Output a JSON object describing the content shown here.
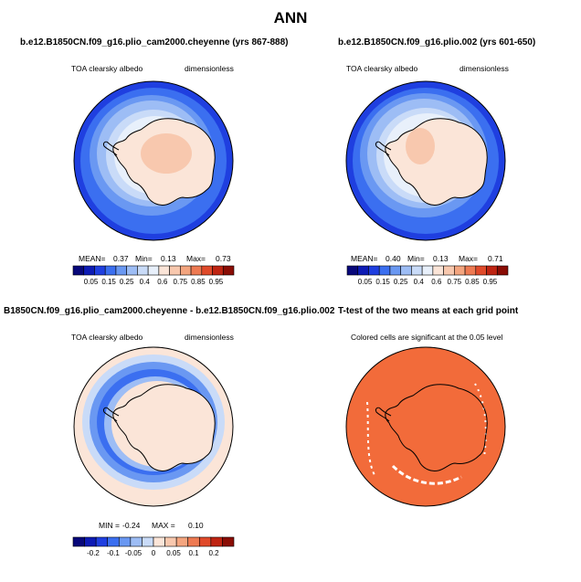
{
  "figure": {
    "title": "ANN"
  },
  "panels": [
    {
      "title": "b.e12.B1850CN.f09_g16.plio_cam2000.cheyenne (yrs 867-888)",
      "variable": "TOA clearsky albedo",
      "units": "dimensionless",
      "stats": {
        "mean_label": "MEAN=",
        "mean": "0.37",
        "min_label": "Min=",
        "min": "0.13",
        "max_label": "Max=",
        "max": "0.73"
      },
      "colorbar_labels": [
        "0.05",
        "0.15",
        "0.25",
        "0.4",
        "0.6",
        "0.75",
        "0.85",
        "0.95"
      ]
    },
    {
      "title": "b.e12.B1850CN.f09_g16.plio.002 (yrs 601-650)",
      "variable": "TOA clearsky albedo",
      "units": "dimensionless",
      "stats": {
        "mean_label": "MEAN=",
        "mean": "0.40",
        "min_label": "Min=",
        "min": "0.13",
        "max_label": "Max=",
        "max": "0.71"
      },
      "colorbar_labels": [
        "0.05",
        "0.15",
        "0.25",
        "0.4",
        "0.6",
        "0.75",
        "0.85",
        "0.95"
      ]
    },
    {
      "title": "B1850CN.f09_g16.plio_cam2000.cheyenne - b.e12.B1850CN.f09_g16.plio.002",
      "variable": "TOA clearsky albedo",
      "units": "dimensionless",
      "stats": {
        "min_label": "MIN =",
        "min": "-0.24",
        "max_label": "MAX =",
        "max": "0.10"
      },
      "colorbar_labels": [
        "-0.2",
        "-0.1",
        "-0.05",
        "0",
        "0.05",
        "0.1",
        "0.2"
      ]
    },
    {
      "title": "T-test of the two means at each grid point",
      "subtitle": "Colored cells are significant at the 0.05 level"
    }
  ],
  "colors": {
    "abs_scale": [
      "#08087a",
      "#0d1bb5",
      "#1f3fe0",
      "#3b6ff0",
      "#6a98f2",
      "#9dbdf5",
      "#c9dbf8",
      "#e8f0fb",
      "#fbe5d8",
      "#f8c8ae",
      "#f4a57f",
      "#ee7a52",
      "#e04a2a",
      "#bf2412",
      "#8a0d05"
    ],
    "diff_scale": [
      "#08087a",
      "#0d1bb5",
      "#1f3fe0",
      "#3b6ff0",
      "#6a98f2",
      "#9dbdf5",
      "#c9dbf8",
      "#fbe5d8",
      "#f8c8ae",
      "#f4a57f",
      "#ee7a52",
      "#e04a2a",
      "#bf2412",
      "#8a0d05"
    ],
    "significant": "#f26b3a"
  }
}
